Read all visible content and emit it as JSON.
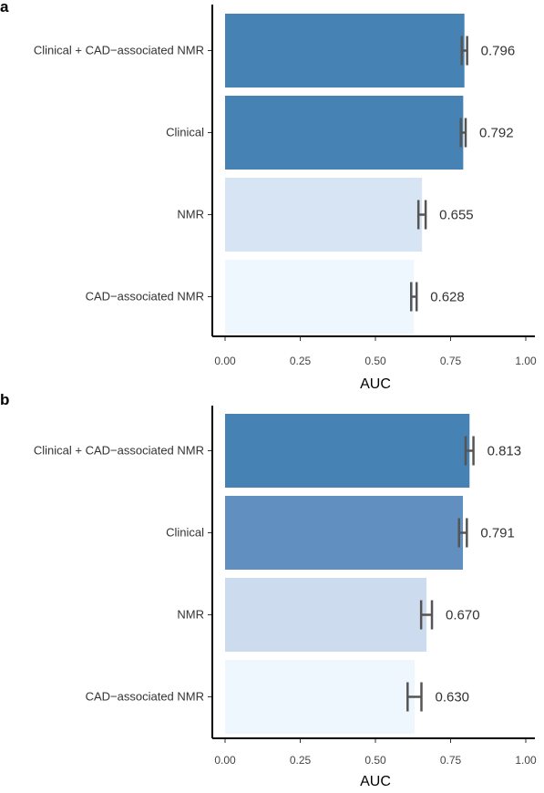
{
  "chart_data": [
    {
      "type": "bar",
      "orientation": "horizontal",
      "panel": "a",
      "categories": [
        "Clinical + CAD−associated NMR",
        "Clinical",
        "NMR",
        "CAD−associated NMR"
      ],
      "values": [
        0.796,
        0.792,
        0.655,
        0.628
      ],
      "value_labels": [
        "0.796",
        "0.792",
        "0.655",
        "0.628"
      ],
      "ci_low": [
        0.787,
        0.784,
        0.643,
        0.619
      ],
      "ci_high": [
        0.805,
        0.8,
        0.667,
        0.637
      ],
      "colors": [
        "#4682B4",
        "#4682B4",
        "#D6E4F4",
        "#EEF6FE"
      ],
      "xlabel": "AUC",
      "xlim": [
        0,
        1
      ],
      "xticks": [
        0,
        0.25,
        0.5,
        0.75,
        1.0
      ],
      "xtick_labels": [
        "0.00",
        "0.25",
        "0.50",
        "0.75",
        "1.00"
      ],
      "grid": false
    },
    {
      "type": "bar",
      "orientation": "horizontal",
      "panel": "b",
      "categories": [
        "Clinical + CAD−associated NMR",
        "Clinical",
        "NMR",
        "CAD−associated NMR"
      ],
      "values": [
        0.813,
        0.791,
        0.67,
        0.63
      ],
      "value_labels": [
        "0.813",
        "0.791",
        "0.670",
        "0.630"
      ],
      "ci_low": [
        0.8,
        0.778,
        0.652,
        0.607
      ],
      "ci_high": [
        0.826,
        0.804,
        0.688,
        0.653
      ],
      "colors": [
        "#4682B4",
        "#6190C0",
        "#CCDCEE",
        "#EEF6FE"
      ],
      "xlabel": "AUC",
      "xlim": [
        0,
        1
      ],
      "xticks": [
        0,
        0.25,
        0.5,
        0.75,
        1.0
      ],
      "xtick_labels": [
        "0.00",
        "0.25",
        "0.50",
        "0.75",
        "1.00"
      ],
      "grid": false
    }
  ]
}
